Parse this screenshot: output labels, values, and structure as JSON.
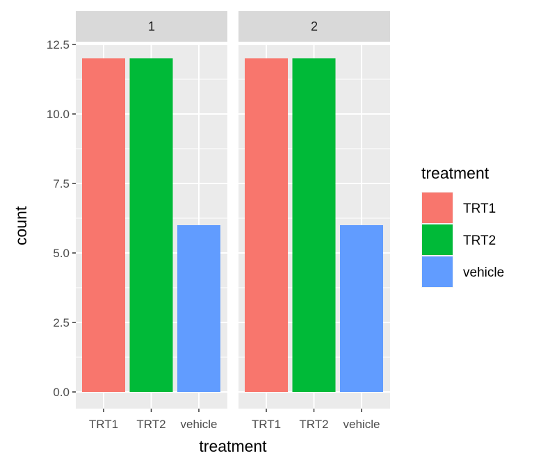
{
  "chart_data": {
    "type": "bar",
    "facets": [
      {
        "strip_label": "1",
        "categories": [
          "TRT1",
          "TRT2",
          "vehicle"
        ],
        "values": [
          12,
          12,
          6
        ]
      },
      {
        "strip_label": "2",
        "categories": [
          "TRT1",
          "TRT2",
          "vehicle"
        ],
        "values": [
          12,
          12,
          6
        ]
      }
    ],
    "xlabel": "treatment",
    "ylabel": "count",
    "ylim": [
      0,
      12.5
    ],
    "y_ticks": [
      "0.0",
      "2.5",
      "5.0",
      "7.5",
      "10.0",
      "12.5"
    ],
    "y_tick_values": [
      0,
      2.5,
      5,
      7.5,
      10,
      12.5
    ],
    "grid": true,
    "legend": {
      "title": "treatment",
      "placement": "right",
      "entries": [
        {
          "label": "TRT1",
          "color": "#F8766D"
        },
        {
          "label": "TRT2",
          "color": "#00BA38"
        },
        {
          "label": "vehicle",
          "color": "#619CFF"
        }
      ]
    },
    "colors": {
      "panel_background": "#EBEBEB",
      "strip_background": "#D9D9D9",
      "grid": "#FFFFFF"
    }
  }
}
